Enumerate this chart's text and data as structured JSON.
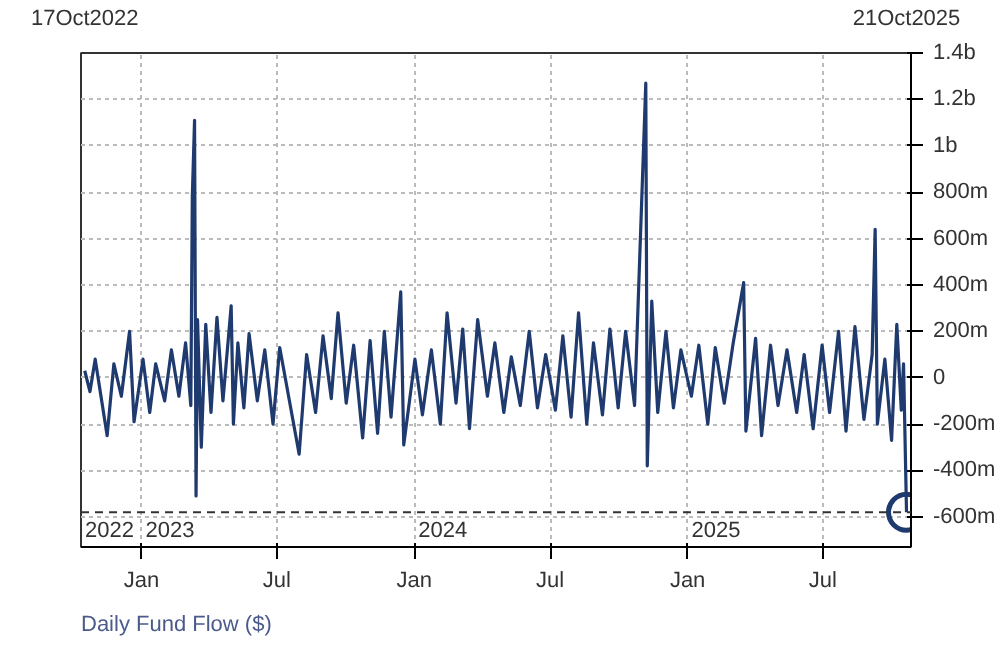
{
  "chart_data": {
    "type": "line",
    "title": "Daily Fund Flow ($)",
    "xlim": [
      "2022-10-12",
      "2025-10-27"
    ],
    "xticks": [
      {
        "value": "2023-01-01",
        "label": "Jan"
      },
      {
        "value": "2023-07-01",
        "label": "Jul"
      },
      {
        "value": "2024-01-01",
        "label": "Jan"
      },
      {
        "value": "2024-07-01",
        "label": "Jul"
      },
      {
        "value": "2025-01-01",
        "label": "Jan"
      },
      {
        "value": "2025-07-01",
        "label": "Jul"
      }
    ],
    "x2lim": [
      "2022-10-12",
      "2025-10-27"
    ],
    "x2ticks": [
      {
        "value": "2022-10-17",
        "label": "17Oct2022"
      },
      {
        "value": "2025-10-21",
        "label": "21Oct2025"
      }
    ],
    "ylim": [
      -730000000.0,
      1400000000.0
    ],
    "yticks": [
      {
        "value": -600000000.0,
        "label": "-600m"
      },
      {
        "value": -400000000.0,
        "label": "-400m"
      },
      {
        "value": -200000000.0,
        "label": "-200m"
      },
      0,
      {
        "value": 200000000.0,
        "label": "200m"
      },
      {
        "value": 400000000.0,
        "label": "400m"
      },
      {
        "value": 600000000.0,
        "label": "600m"
      },
      {
        "value": 800000000.0,
        "label": "800m"
      },
      {
        "value": 1000000000.0,
        "label": "1b"
      },
      {
        "value": 1200000000.0,
        "label": "1.2b"
      },
      {
        "value": 1400000000.0,
        "label": "1.4b"
      }
    ],
    "grid": true,
    "annotations": [
      "2022",
      "2023",
      "2024",
      "2025"
    ],
    "ref_lines": [
      {
        "axis": "y",
        "value": -580000000.0,
        "line_style": "dashed",
        "color": "#333333"
      }
    ],
    "series": [
      {
        "color": "#1f3a6e",
        "x": [
          "2022-10-17",
          "2022-10-24",
          "2022-10-31",
          "2022-11-16",
          "2022-11-25",
          "2022-12-05",
          "2022-12-16",
          "2022-12-22",
          "2023-01-03",
          "2023-01-12",
          "2023-01-20",
          "2023-02-01",
          "2023-02-10",
          "2023-02-20",
          "2023-03-01",
          "2023-03-08",
          "2023-03-10",
          "2023-03-13",
          "2023-03-15",
          "2023-03-17",
          "2023-03-22",
          "2023-03-28",
          "2023-04-04",
          "2023-04-12",
          "2023-04-20",
          "2023-05-01",
          "2023-05-04",
          "2023-05-10",
          "2023-05-18",
          "2023-05-25",
          "2023-06-05",
          "2023-06-15",
          "2023-06-26",
          "2023-07-05",
          "2023-07-31",
          "2023-08-10",
          "2023-08-22",
          "2023-09-01",
          "2023-09-12",
          "2023-09-21",
          "2023-10-02",
          "2023-10-12",
          "2023-10-24",
          "2023-11-03",
          "2023-11-13",
          "2023-11-22",
          "2023-12-01",
          "2023-12-14",
          "2023-12-18",
          "2024-01-02",
          "2024-01-12",
          "2024-01-24",
          "2024-02-05",
          "2024-02-14",
          "2024-02-26",
          "2024-03-06",
          "2024-03-15",
          "2024-03-26",
          "2024-04-08",
          "2024-04-18",
          "2024-04-30",
          "2024-05-10",
          "2024-05-22",
          "2024-06-03",
          "2024-06-14",
          "2024-06-25",
          "2024-07-08",
          "2024-07-18",
          "2024-07-29",
          "2024-08-08",
          "2024-08-19",
          "2024-08-28",
          "2024-09-09",
          "2024-09-19",
          "2024-09-30",
          "2024-10-10",
          "2024-10-22",
          "2024-11-06",
          "2024-11-08",
          "2024-11-14",
          "2024-11-22",
          "2024-12-03",
          "2024-12-13",
          "2024-12-23",
          "2025-01-06",
          "2025-01-16",
          "2025-01-28",
          "2025-02-07",
          "2025-02-19",
          "2025-03-03",
          "2025-03-17",
          "2025-03-20",
          "2025-04-02",
          "2025-04-10",
          "2025-04-22",
          "2025-05-02",
          "2025-05-14",
          "2025-05-27",
          "2025-06-06",
          "2025-06-18",
          "2025-06-30",
          "2025-07-10",
          "2025-07-22",
          "2025-08-01",
          "2025-08-13",
          "2025-08-25",
          "2025-09-05",
          "2025-09-09",
          "2025-09-12",
          "2025-09-22",
          "2025-10-01",
          "2025-10-08",
          "2025-10-14",
          "2025-10-17",
          "2025-10-21"
        ],
        "values": [
          30000000.0,
          -60000000.0,
          80000000.0,
          -250000000.0,
          60000000.0,
          -80000000.0,
          200000000.0,
          -190000000.0,
          80000000.0,
          -150000000.0,
          60000000.0,
          -100000000.0,
          120000000.0,
          -80000000.0,
          150000000.0,
          -120000000.0,
          780000000.0,
          1110000000.0,
          -510000000.0,
          250000000.0,
          -300000000.0,
          230000000.0,
          -150000000.0,
          260000000.0,
          -100000000.0,
          310000000.0,
          -200000000.0,
          150000000.0,
          -130000000.0,
          190000000.0,
          -100000000.0,
          120000000.0,
          -200000000.0,
          130000000.0,
          -330000000.0,
          100000000.0,
          -150000000.0,
          180000000.0,
          -90000000.0,
          280000000.0,
          -110000000.0,
          140000000.0,
          -260000000.0,
          160000000.0,
          -240000000.0,
          200000000.0,
          -170000000.0,
          370000000.0,
          -290000000.0,
          80000000.0,
          -160000000.0,
          120000000.0,
          -200000000.0,
          280000000.0,
          -110000000.0,
          210000000.0,
          -220000000.0,
          250000000.0,
          -80000000.0,
          150000000.0,
          -150000000.0,
          90000000.0,
          -120000000.0,
          200000000.0,
          -130000000.0,
          100000000.0,
          -140000000.0,
          180000000.0,
          -170000000.0,
          280000000.0,
          -200000000.0,
          150000000.0,
          -160000000.0,
          210000000.0,
          -130000000.0,
          200000000.0,
          -120000000.0,
          1270000000.0,
          -380000000.0,
          330000000.0,
          -150000000.0,
          200000000.0,
          -130000000.0,
          120000000.0,
          -80000000.0,
          140000000.0,
          -200000000.0,
          130000000.0,
          -110000000.0,
          150000000.0,
          410000000.0,
          -230000000.0,
          170000000.0,
          -250000000.0,
          140000000.0,
          -120000000.0,
          120000000.0,
          -150000000.0,
          100000000.0,
          -220000000.0,
          140000000.0,
          -150000000.0,
          200000000.0,
          -230000000.0,
          220000000.0,
          -180000000.0,
          100000000.0,
          640000000.0,
          -200000000.0,
          80000000.0,
          -270000000.0,
          230000000.0,
          -140000000.0,
          60000000.0,
          -580000000.0
        ]
      },
      {
        "type": "scatter",
        "marker": "circle",
        "color": "#1f3a6e",
        "x": [
          "2025-10-21"
        ],
        "values": [
          -580000000.0
        ]
      }
    ]
  }
}
